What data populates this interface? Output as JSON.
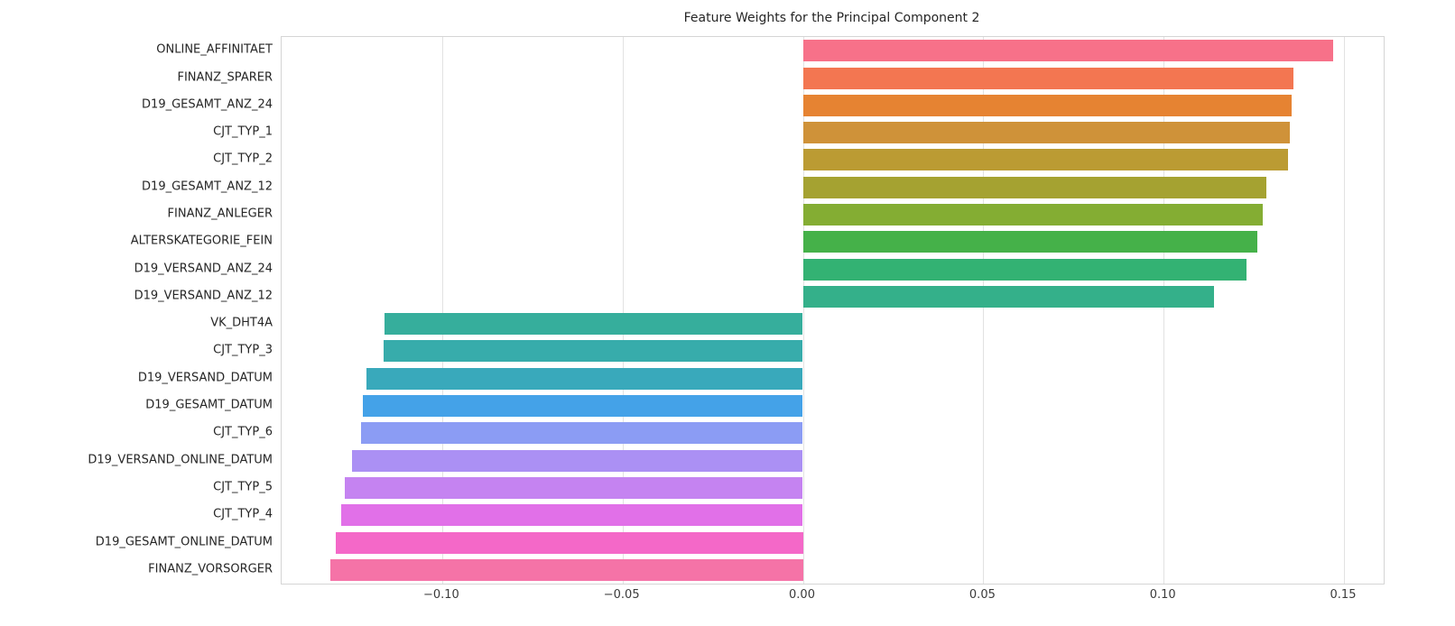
{
  "chart_data": {
    "type": "bar",
    "orientation": "horizontal",
    "title": "Feature Weights for the Principal Component 2",
    "xlabel": "",
    "ylabel": "",
    "grid": "vertical",
    "legend": "none",
    "xlim": [
      -0.1445,
      0.161
    ],
    "categories": [
      "ONLINE_AFFINITAET",
      "FINANZ_SPARER",
      "D19_GESAMT_ANZ_24",
      "CJT_TYP_1",
      "CJT_TYP_2",
      "D19_GESAMT_ANZ_12",
      "FINANZ_ANLEGER",
      "ALTERSKATEGORIE_FEIN",
      "D19_VERSAND_ANZ_24",
      "D19_VERSAND_ANZ_12",
      "VK_DHT4A",
      "CJT_TYP_3",
      "D19_VERSAND_DATUM",
      "D19_GESAMT_DATUM",
      "CJT_TYP_6",
      "D19_VERSAND_ONLINE_DATUM",
      "CJT_TYP_5",
      "CJT_TYP_4",
      "D19_GESAMT_ONLINE_DATUM",
      "FINANZ_VORSORGER"
    ],
    "values": [
      0.147,
      0.136,
      0.1355,
      0.135,
      0.1345,
      0.1285,
      0.1275,
      0.126,
      0.123,
      0.114,
      -0.116,
      -0.1162,
      -0.121,
      -0.122,
      -0.1225,
      -0.125,
      -0.127,
      -0.128,
      -0.1295,
      -0.131
    ],
    "colors": [
      "#f77189",
      "#f37651",
      "#e68332",
      "#cf9239",
      "#bb9b33",
      "#a5a231",
      "#84ad33",
      "#45b149",
      "#33b273",
      "#34b08a",
      "#36ae9c",
      "#37acab",
      "#39a9bb",
      "#44a2e8",
      "#8b9cf4",
      "#ab90f4",
      "#c583f1",
      "#e170e8",
      "#f468c8",
      "#f573a7"
    ],
    "xticks": [
      {
        "value": -0.1,
        "label": "−0.10"
      },
      {
        "value": -0.05,
        "label": "−0.05"
      },
      {
        "value": 0.0,
        "label": "0.00"
      },
      {
        "value": 0.05,
        "label": "0.05"
      },
      {
        "value": 0.1,
        "label": "0.10"
      },
      {
        "value": 0.15,
        "label": "0.15"
      }
    ]
  }
}
